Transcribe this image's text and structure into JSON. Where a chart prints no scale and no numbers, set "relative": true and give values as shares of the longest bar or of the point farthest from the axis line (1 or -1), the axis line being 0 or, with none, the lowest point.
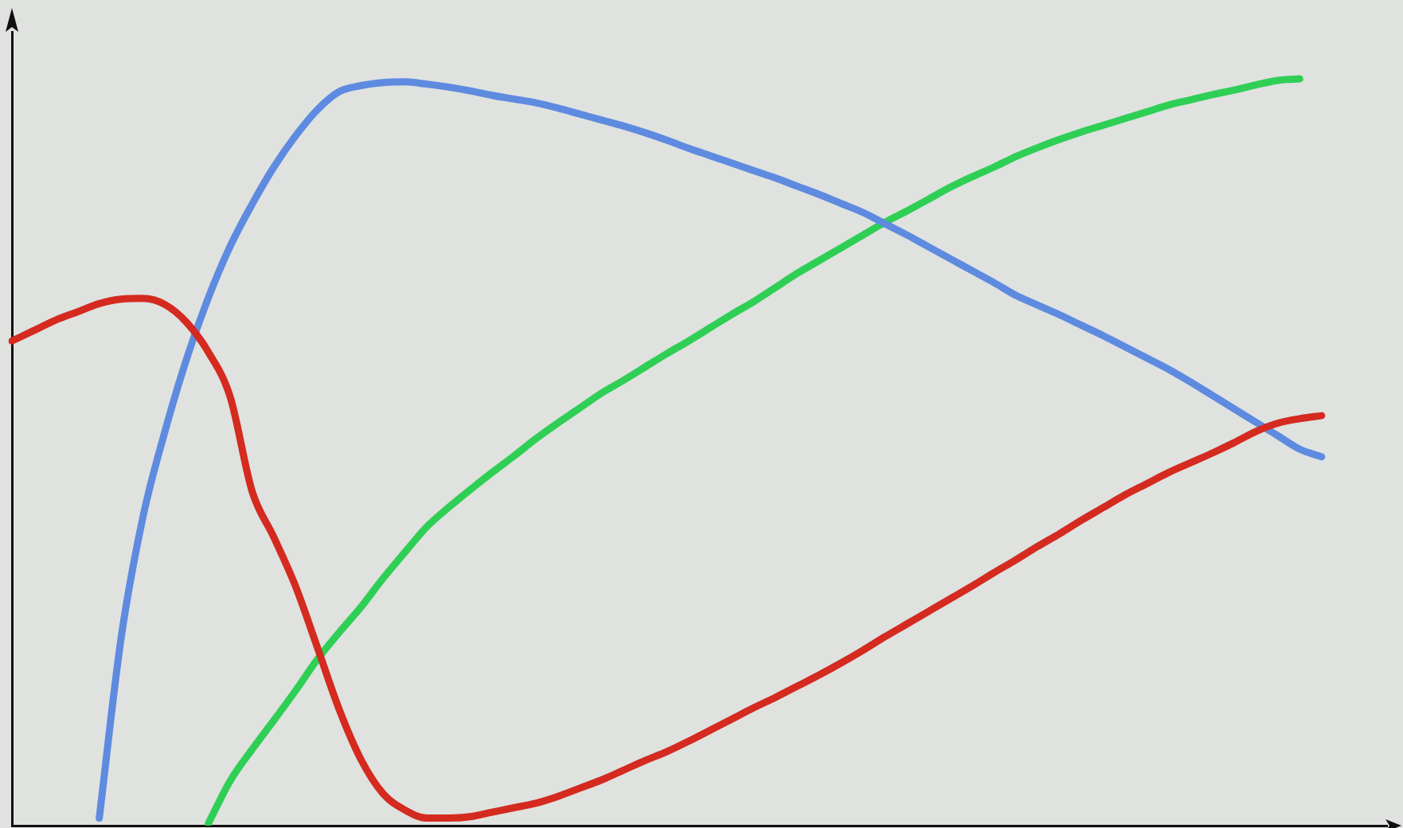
{
  "chart_data": {
    "type": "line",
    "relative": true,
    "legend": false,
    "grid": false,
    "marker": "none",
    "line_style": "solid",
    "tick_labels": false,
    "categories": [
      null,
      null,
      null,
      null,
      null,
      null,
      null,
      null,
      null,
      null,
      null,
      null,
      null,
      null,
      null,
      null,
      null,
      null,
      null,
      null,
      null,
      null,
      null,
      null,
      null,
      null,
      null,
      null,
      null,
      null,
      null,
      null,
      null,
      null,
      null,
      null,
      null,
      null,
      null,
      null,
      null,
      null,
      null,
      null,
      null,
      null,
      null,
      null,
      null,
      null,
      null,
      null,
      null,
      null,
      null,
      null,
      null,
      null,
      null,
      null,
      null,
      null,
      null,
      null
    ],
    "series": [
      {
        "color": "#d42a1f",
        "values": [
          0.649,
          0.663,
          0.677,
          0.688,
          0.699,
          0.705,
          0.706,
          0.698,
          0.674,
          0.634,
          0.574,
          0.448,
          0.386,
          0.32,
          0.238,
          0.155,
          0.088,
          0.043,
          0.021,
          0.01,
          0.01,
          0.012,
          0.018,
          0.024,
          0.03,
          0.039,
          0.05,
          0.061,
          0.074,
          0.087,
          0.099,
          0.113,
          0.128,
          0.143,
          0.158,
          0.172,
          0.187,
          0.202,
          0.218,
          0.235,
          0.253,
          0.27,
          0.287,
          0.304,
          0.321,
          0.339,
          0.356,
          0.374,
          0.391,
          0.409,
          0.426,
          0.443,
          0.458,
          0.473,
          0.486,
          0.499,
          0.513,
          0.528,
          0.539,
          0.545,
          0.549,
          null,
          null,
          null
        ]
      },
      {
        "color": "#5e8be0",
        "values": [
          null,
          null,
          null,
          null,
          0.01,
          0.251,
          0.413,
          0.527,
          0.625,
          0.707,
          0.776,
          0.832,
          0.882,
          0.924,
          0.959,
          0.983,
          0.991,
          0.995,
          0.996,
          0.993,
          0.989,
          0.984,
          0.978,
          0.973,
          0.968,
          0.961,
          0.953,
          0.945,
          0.937,
          0.928,
          0.918,
          0.907,
          0.897,
          0.887,
          0.877,
          0.867,
          0.856,
          0.845,
          0.833,
          0.821,
          0.806,
          0.791,
          0.775,
          0.759,
          0.743,
          0.727,
          0.71,
          0.697,
          0.684,
          0.67,
          0.656,
          0.641,
          0.626,
          0.611,
          0.594,
          0.576,
          0.558,
          0.54,
          0.522,
          0.504,
          0.494,
          null,
          null,
          null
        ]
      },
      {
        "color": "#2fcf55",
        "values": [
          null,
          null,
          null,
          null,
          null,
          null,
          null,
          null,
          null,
          0.003,
          0.06,
          0.102,
          0.141,
          0.181,
          0.223,
          0.259,
          0.293,
          0.331,
          0.366,
          0.4,
          0.426,
          0.45,
          0.473,
          0.495,
          0.518,
          0.539,
          0.559,
          0.579,
          0.596,
          0.614,
          0.632,
          0.649,
          0.667,
          0.685,
          0.702,
          0.721,
          0.74,
          0.757,
          0.774,
          0.791,
          0.808,
          0.823,
          0.839,
          0.855,
          0.869,
          0.882,
          0.896,
          0.908,
          0.919,
          0.929,
          0.938,
          0.947,
          0.956,
          0.965,
          0.972,
          0.979,
          0.985,
          0.992,
          0.998,
          1,
          null,
          null,
          null,
          null
        ]
      }
    ]
  }
}
